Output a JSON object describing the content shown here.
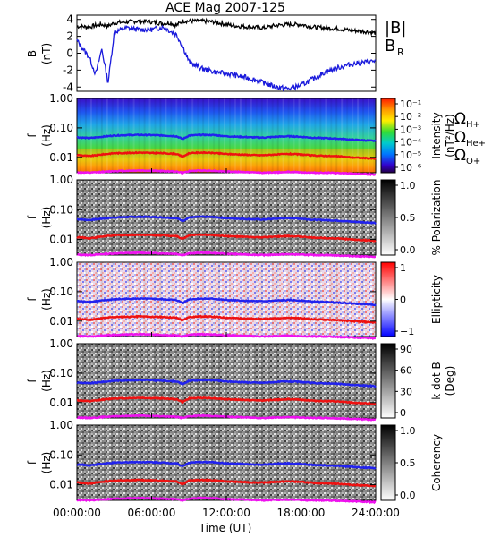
{
  "title": "ACE Mag 2007-125",
  "x_axis": {
    "label": "Time (UT)",
    "ticks": [
      "00:00:00",
      "06:00:00",
      "12:00:00",
      "18:00:00",
      "24:00:00"
    ],
    "range_hours": [
      0,
      24
    ]
  },
  "legend": {
    "b_total": "|B|",
    "b_r": "B",
    "b_r_sub": "R",
    "omega_h": "Ω",
    "omega_h_sub": "H+",
    "omega_he": "Ω",
    "omega_he_sub": "He+",
    "omega_o": "Ω",
    "omega_o_sub": "O+"
  },
  "colors": {
    "b_total": "#000000",
    "b_r": "#1a1adc",
    "omega_h": "#2222ee",
    "omega_he": "#ee1111",
    "omega_o": "#ee11ee"
  },
  "panel_labels": {
    "mag_y1": "B",
    "mag_y2": "(nT)",
    "freq_y1": "f",
    "freq_y2": "(Hz)"
  },
  "colorbars": [
    {
      "panel": "intensity",
      "title1": "Intensity",
      "title2": "(nT²/Hz)",
      "ticks": [
        "10⁻¹",
        "10⁻²",
        "10⁻³",
        "10⁻⁴",
        "10⁻⁵",
        "10⁻⁶"
      ],
      "scale": "rainbow"
    },
    {
      "panel": "polarization",
      "title1": "% Polarization",
      "title2": "",
      "ticks": [
        "1.0",
        "0.5",
        "0.0"
      ],
      "scale": "gray"
    },
    {
      "panel": "ellipticity",
      "title1": "Ellipticity",
      "title2": "",
      "ticks": [
        "1",
        "0",
        "−1"
      ],
      "scale": "bluewhitered"
    },
    {
      "panel": "kdotb",
      "title1": "k dot B",
      "title2": "(Deg)",
      "ticks": [
        "90",
        "60",
        "30",
        "0"
      ],
      "scale": "gray"
    },
    {
      "panel": "coherency",
      "title1": "Coherency",
      "title2": "",
      "ticks": [
        "1.0",
        "0.5",
        "0.0"
      ],
      "scale": "gray"
    }
  ],
  "chart_data": [
    {
      "type": "line",
      "title": "ACE Mag 2007-125",
      "ylabel": "B (nT)",
      "ylim": [
        -4.5,
        4.5
      ],
      "yticks": [
        "4",
        "2",
        "0",
        "-2",
        "-4"
      ],
      "x_hours": [
        0,
        1,
        1.5,
        2,
        2.5,
        3,
        4,
        5,
        6,
        7,
        7.5,
        8,
        8.5,
        9,
        10,
        11,
        12,
        13,
        14,
        15,
        16,
        17,
        18,
        19,
        20,
        21,
        22,
        23,
        24
      ],
      "series": [
        {
          "name": "|B|",
          "values": [
            3.2,
            3.1,
            3.3,
            3.4,
            3.2,
            3.6,
            3.7,
            3.8,
            3.7,
            3.5,
            3.6,
            3.3,
            3.8,
            3.8,
            3.8,
            3.7,
            3.4,
            3.2,
            3.1,
            3.0,
            3.3,
            3.4,
            3.4,
            3.1,
            3.0,
            2.9,
            2.7,
            2.6,
            2.4
          ]
        },
        {
          "name": "BR",
          "values": [
            1.5,
            -0.5,
            -2.5,
            0.5,
            -3.5,
            2.5,
            3.0,
            2.8,
            2.8,
            3.1,
            2.6,
            2.2,
            0.8,
            -1.0,
            -1.8,
            -2.2,
            -2.4,
            -2.7,
            -3.0,
            -3.5,
            -4.0,
            -4.2,
            -3.8,
            -3.0,
            -2.2,
            -1.7,
            -1.3,
            -1.1,
            -0.9
          ]
        }
      ]
    },
    {
      "type": "heatmap",
      "panel": "intensity",
      "ylabel": "f (Hz)",
      "yscale": "log",
      "ylim": [
        0.003,
        1.0
      ],
      "yticks": [
        "1.00",
        "0.10",
        "0.01"
      ],
      "overlays": [
        "ΩH+",
        "ΩHe+",
        "ΩO+"
      ]
    },
    {
      "type": "heatmap",
      "panel": "polarization",
      "ylabel": "f (Hz)",
      "yscale": "log",
      "ylim": [
        0.003,
        1.0
      ],
      "yticks": [
        "1.00",
        "0.10",
        "0.01"
      ]
    },
    {
      "type": "heatmap",
      "panel": "ellipticity",
      "ylabel": "f (Hz)",
      "yscale": "log",
      "ylim": [
        0.003,
        1.0
      ],
      "yticks": [
        "1.00",
        "0.10",
        "0.01"
      ]
    },
    {
      "type": "heatmap",
      "panel": "kdotb",
      "ylabel": "f (Hz)",
      "yscale": "log",
      "ylim": [
        0.003,
        1.0
      ],
      "yticks": [
        "1.00",
        "0.10",
        "0.01"
      ]
    },
    {
      "type": "heatmap",
      "panel": "coherency",
      "ylabel": "f (Hz)",
      "yscale": "log",
      "ylim": [
        0.003,
        1.0
      ],
      "yticks": [
        "1.00",
        "0.10",
        "0.01"
      ]
    }
  ],
  "gyro_freq": {
    "x_hours": [
      0,
      1,
      2,
      3,
      4,
      5,
      6,
      7,
      8,
      8.5,
      9,
      10,
      11,
      12,
      13,
      14,
      15,
      16,
      17,
      18,
      19,
      20,
      21,
      22,
      23,
      24
    ],
    "omega_h_hz": [
      0.048,
      0.045,
      0.05,
      0.055,
      0.057,
      0.058,
      0.057,
      0.055,
      0.052,
      0.042,
      0.055,
      0.058,
      0.057,
      0.052,
      0.05,
      0.048,
      0.047,
      0.05,
      0.052,
      0.05,
      0.046,
      0.045,
      0.043,
      0.04,
      0.038,
      0.036
    ],
    "omega_he_hz": [
      0.012,
      0.011,
      0.0125,
      0.0138,
      0.014,
      0.0145,
      0.014,
      0.0138,
      0.013,
      0.0105,
      0.0138,
      0.0145,
      0.014,
      0.013,
      0.0125,
      0.012,
      0.0118,
      0.0125,
      0.013,
      0.0125,
      0.0115,
      0.0112,
      0.0108,
      0.01,
      0.0095,
      0.009
    ],
    "omega_o_hz": [
      0.0031,
      0.003,
      0.0032,
      0.0034,
      0.0035,
      0.0036,
      0.0035,
      0.0034,
      0.0033,
      0.003,
      0.0034,
      0.0036,
      0.0035,
      0.0033,
      0.0032,
      0.0031,
      0.003,
      0.0031,
      0.0032,
      0.0031,
      0.003,
      0.003,
      0.0029,
      0.0028,
      0.0027,
      0.0026
    ]
  }
}
